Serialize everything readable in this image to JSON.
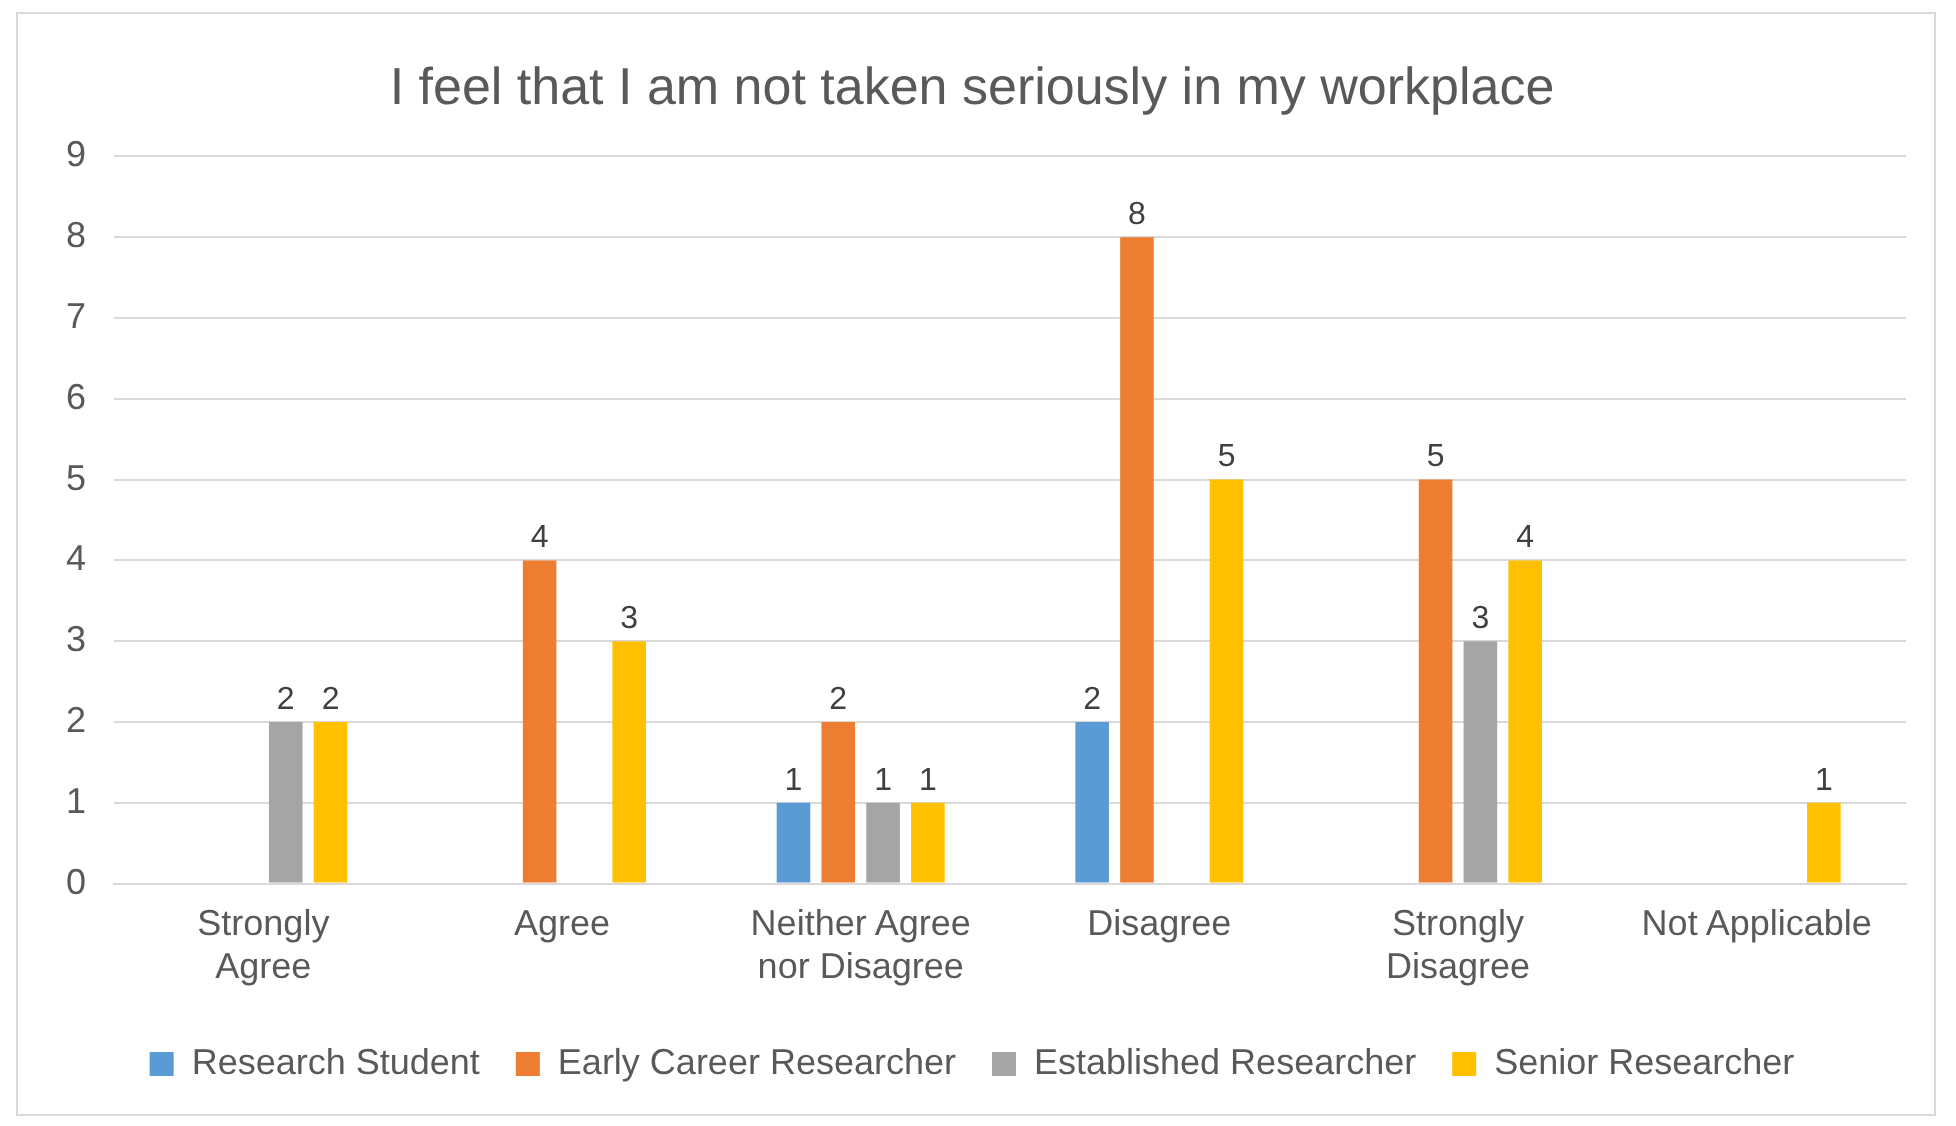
{
  "chart_data": {
    "type": "bar",
    "title": "I feel that I am not taken seriously in my workplace",
    "categories": [
      "Strongly Agree",
      "Agree",
      "Neither Agree nor Disagree",
      "Disagree",
      "Strongly Disagree",
      "Not Applicable"
    ],
    "series": [
      {
        "name": "Research Student",
        "color": "#5b9bd5",
        "values": [
          0,
          0,
          1,
          2,
          0,
          0
        ],
        "value_labels": [
          null,
          null,
          "1",
          "2",
          null,
          null
        ]
      },
      {
        "name": "Early Career Researcher",
        "color": "#ed7d31",
        "values": [
          0,
          4,
          2,
          8,
          5,
          0
        ],
        "value_labels": [
          null,
          "4",
          "2",
          "8",
          "5",
          null
        ]
      },
      {
        "name": "Established Researcher",
        "color": "#a5a5a5",
        "values": [
          2,
          0,
          1,
          0,
          3,
          0
        ],
        "value_labels": [
          "2",
          null,
          "1",
          null,
          "3",
          null
        ]
      },
      {
        "name": "Senior Researcher",
        "color": "#ffc000",
        "values": [
          2,
          3,
          1,
          5,
          4,
          1
        ],
        "value_labels": [
          "2",
          "3",
          "1",
          "5",
          "4",
          "1"
        ]
      }
    ],
    "ylim": [
      0,
      9
    ],
    "yticks": [
      0,
      1,
      2,
      3,
      4,
      5,
      6,
      7,
      8,
      9
    ],
    "grid": "y",
    "legend": "bottom"
  }
}
